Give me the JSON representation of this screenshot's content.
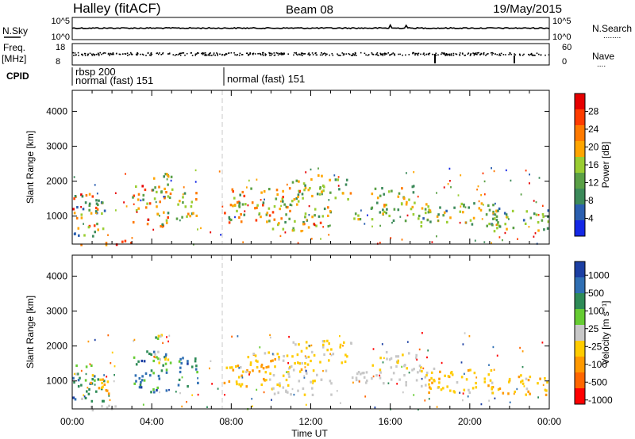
{
  "header": {
    "left": "Halley (fitACF)",
    "center": "Beam 08",
    "right": "19/May/2015"
  },
  "nsky_panel": {
    "left_label": "N.Sky",
    "left_ticks": [
      "10^5",
      "10^0"
    ],
    "right_label": "N.Search",
    "right_ticks": [
      "10^5",
      "10^0"
    ],
    "right_legend_dots": "........"
  },
  "freq_panel": {
    "left_label_line1": "Freq.",
    "left_label_line2": "[MHz]",
    "left_ticks": [
      "18",
      "8"
    ],
    "right_label": "Nave",
    "right_ticks": [
      "60",
      "0"
    ],
    "right_legend_dots": "...."
  },
  "cpid_panel": {
    "label": "CPID",
    "segments": [
      {
        "line1": "rbsp 200",
        "line2": "normal (fast) 151",
        "start_hour": 0.05,
        "end_hour": 7.55
      },
      {
        "line1": "",
        "line2": "normal (fast) 151",
        "start_hour": 7.55,
        "end_hour": 24
      }
    ]
  },
  "x_axis": {
    "label": "Time UT",
    "ticks": [
      "00:00",
      "04:00",
      "08:00",
      "12:00",
      "16:00",
      "20:00",
      "00:00"
    ]
  },
  "y_axis": {
    "label": "Slant Range [km]",
    "ticks": [
      "1000",
      "2000",
      "3000",
      "4000"
    ]
  },
  "colors": {
    "power_scale": [
      "#1428e6",
      "#2b5fb0",
      "#3c8a5a",
      "#5aa046",
      "#9acd32",
      "#ffa500",
      "#ff7a00",
      "#ff3c00",
      "#e60000"
    ],
    "velocity_scale": [
      "#ff0000",
      "#ff6600",
      "#ff9900",
      "#ffcc00",
      "#c8c8c8",
      "#66cc33",
      "#2e8b57",
      "#2f6fb3",
      "#1c3fa3"
    ]
  },
  "chart_data": [
    {
      "type": "heatmap",
      "title": "",
      "xlabel": "Time UT",
      "ylabel": "Slant Range [km]",
      "xlim": [
        0,
        24
      ],
      "ylim": [
        200,
        4600
      ],
      "colorbar": {
        "label": "Power [dB]",
        "ticks": [
          "4",
          "8",
          "12",
          "16",
          "20",
          "24",
          "28"
        ],
        "range": [
          0,
          32
        ]
      },
      "scatter_regions": [
        {
          "t0": 0.0,
          "t1": 1.6,
          "r0": 450,
          "r1": 1700,
          "v0": 4,
          "v1": 30
        },
        {
          "t0": 0.8,
          "t1": 1.8,
          "r0": 1100,
          "r1": 1700,
          "v0": 6,
          "v1": 20
        },
        {
          "t0": 3.0,
          "t1": 4.8,
          "r0": 700,
          "r1": 1900,
          "v0": 8,
          "v1": 30
        },
        {
          "t0": 4.0,
          "t1": 5.0,
          "r0": 1500,
          "r1": 2400,
          "v0": 8,
          "v1": 24
        },
        {
          "t0": 5.2,
          "t1": 6.3,
          "r0": 800,
          "r1": 1700,
          "v0": 8,
          "v1": 26
        },
        {
          "t0": 7.6,
          "t1": 10.0,
          "r0": 850,
          "r1": 1450,
          "v0": 8,
          "v1": 28
        },
        {
          "t0": 8.0,
          "t1": 11.5,
          "r0": 1250,
          "r1": 1850,
          "v0": 8,
          "v1": 26
        },
        {
          "t0": 10.0,
          "t1": 13.0,
          "r0": 600,
          "r1": 1350,
          "v0": 8,
          "v1": 26
        },
        {
          "t0": 11.0,
          "t1": 14.0,
          "r0": 1500,
          "r1": 2200,
          "v0": 8,
          "v1": 22
        },
        {
          "t0": 15.0,
          "t1": 17.5,
          "r0": 1300,
          "r1": 1900,
          "v0": 8,
          "v1": 24
        },
        {
          "t0": 14.0,
          "t1": 18.0,
          "r0": 900,
          "r1": 1300,
          "v0": 8,
          "v1": 20
        },
        {
          "t0": 17.5,
          "t1": 21.5,
          "r0": 700,
          "r1": 1400,
          "v0": 6,
          "v1": 22
        },
        {
          "t0": 21.0,
          "t1": 24.0,
          "r0": 600,
          "r1": 1200,
          "v0": 6,
          "v1": 20
        },
        {
          "t0": 0.0,
          "t1": 3.0,
          "r0": 200,
          "r1": 330,
          "v0": 20,
          "v1": 30
        }
      ]
    },
    {
      "type": "heatmap",
      "title": "",
      "xlabel": "Time UT",
      "ylabel": "Slant Range [km]",
      "xlim": [
        0,
        24
      ],
      "ylim": [
        200,
        4600
      ],
      "colorbar": {
        "label": "Velocity [m s⁻¹]",
        "ticks": [
          "1000",
          "500",
          "100",
          "25",
          "-25",
          "-100",
          "-500",
          "-1000"
        ],
        "range": [
          -1000,
          1000
        ]
      },
      "scatter_regions": [
        {
          "t0": 0.0,
          "t1": 1.6,
          "r0": 450,
          "r1": 1500,
          "v0": 50,
          "v1": 800
        },
        {
          "t0": 0.8,
          "t1": 1.8,
          "r0": 500,
          "r1": 1200,
          "v0": -600,
          "v1": -50
        },
        {
          "t0": 3.0,
          "t1": 4.8,
          "r0": 700,
          "r1": 1900,
          "v0": 100,
          "v1": 900
        },
        {
          "t0": 4.0,
          "t1": 5.0,
          "r0": 1500,
          "r1": 2400,
          "v0": -200,
          "v1": 400
        },
        {
          "t0": 5.2,
          "t1": 6.3,
          "r0": 800,
          "r1": 1700,
          "v0": 200,
          "v1": 900
        },
        {
          "t0": 7.6,
          "t1": 10.0,
          "r0": 850,
          "r1": 1450,
          "v0": -500,
          "v1": -60
        },
        {
          "t0": 8.0,
          "t1": 11.5,
          "r0": 1250,
          "r1": 1850,
          "v0": -400,
          "v1": -40
        },
        {
          "t0": 10.0,
          "t1": 13.0,
          "r0": 600,
          "r1": 1350,
          "v0": -200,
          "v1": 100
        },
        {
          "t0": 11.0,
          "t1": 14.0,
          "r0": 1500,
          "r1": 2200,
          "v0": -300,
          "v1": -30
        },
        {
          "t0": 15.0,
          "t1": 17.5,
          "r0": 1300,
          "r1": 1900,
          "v0": -150,
          "v1": -30
        },
        {
          "t0": 14.0,
          "t1": 18.0,
          "r0": 900,
          "r1": 1300,
          "v0": -100,
          "v1": 80
        },
        {
          "t0": 17.5,
          "t1": 21.5,
          "r0": 700,
          "r1": 1400,
          "v0": -400,
          "v1": -30
        },
        {
          "t0": 21.0,
          "t1": 24.0,
          "r0": 600,
          "r1": 1200,
          "v0": -500,
          "v1": -50
        },
        {
          "t0": 0.0,
          "t1": 3.0,
          "r0": 200,
          "r1": 330,
          "v0": -20,
          "v1": 20
        }
      ]
    }
  ]
}
